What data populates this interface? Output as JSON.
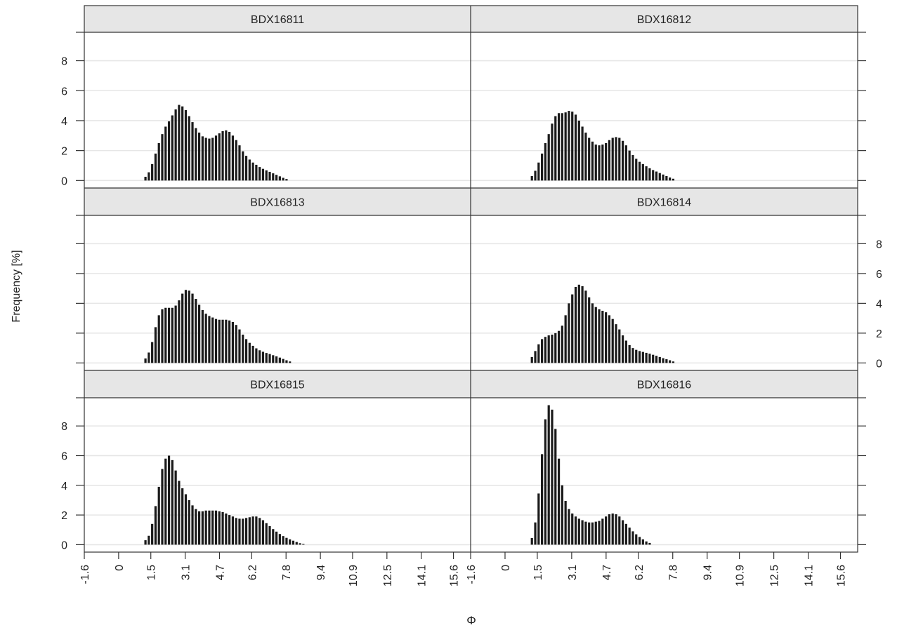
{
  "chart_data": {
    "type": "bar",
    "layout": "lattice 2 columns x 3 rows",
    "xlabel": "Φ",
    "ylabel": "Frequency [%]",
    "x_ticks": [
      "-1.6",
      "0",
      "1.5",
      "3.1",
      "4.7",
      "6.2",
      "7.8",
      "9.4",
      "10.9",
      "12.5",
      "14.1",
      "15.6"
    ],
    "y_ticks": [
      0,
      2,
      4,
      6,
      8
    ],
    "xlim": [
      -1.6,
      16.4
    ],
    "ylim": [
      -0.5,
      9.9
    ],
    "grid": true,
    "colors": {
      "bar": "#1a1a1a",
      "strip": "#e6e6e6",
      "grid": "#e6e6e6",
      "frame": "#333333"
    },
    "x_start": 1.25,
    "x_step": 0.1565,
    "panels": [
      {
        "name": "BDX16811",
        "values": [
          0.25,
          0.55,
          1.1,
          1.8,
          2.5,
          3.1,
          3.6,
          3.95,
          4.35,
          4.75,
          5.05,
          4.95,
          4.7,
          4.3,
          3.9,
          3.5,
          3.2,
          2.95,
          2.85,
          2.8,
          2.85,
          3.0,
          3.15,
          3.3,
          3.35,
          3.25,
          3.0,
          2.7,
          2.35,
          1.95,
          1.65,
          1.4,
          1.2,
          1.05,
          0.9,
          0.78,
          0.68,
          0.58,
          0.48,
          0.38,
          0.28,
          0.18,
          0.1
        ]
      },
      {
        "name": "BDX16812",
        "values": [
          0.3,
          0.65,
          1.2,
          1.8,
          2.5,
          3.1,
          3.8,
          4.3,
          4.5,
          4.5,
          4.55,
          4.65,
          4.6,
          4.4,
          4.0,
          3.6,
          3.2,
          2.85,
          2.6,
          2.4,
          2.35,
          2.4,
          2.5,
          2.7,
          2.85,
          2.9,
          2.85,
          2.65,
          2.35,
          2.0,
          1.7,
          1.45,
          1.25,
          1.1,
          0.95,
          0.82,
          0.7,
          0.6,
          0.5,
          0.4,
          0.3,
          0.2,
          0.12
        ]
      },
      {
        "name": "BDX16813",
        "values": [
          0.3,
          0.7,
          1.4,
          2.4,
          3.2,
          3.6,
          3.7,
          3.7,
          3.7,
          3.85,
          4.2,
          4.65,
          4.9,
          4.85,
          4.65,
          4.3,
          3.9,
          3.55,
          3.3,
          3.15,
          3.05,
          2.95,
          2.9,
          2.9,
          2.9,
          2.85,
          2.75,
          2.55,
          2.25,
          1.9,
          1.6,
          1.35,
          1.15,
          0.98,
          0.85,
          0.75,
          0.67,
          0.6,
          0.52,
          0.44,
          0.36,
          0.27,
          0.18,
          0.1
        ]
      },
      {
        "name": "BDX16814",
        "values": [
          0.4,
          0.8,
          1.25,
          1.6,
          1.75,
          1.85,
          1.9,
          2.0,
          2.15,
          2.5,
          3.2,
          4.0,
          4.6,
          5.1,
          5.25,
          5.15,
          4.85,
          4.4,
          4.0,
          3.75,
          3.6,
          3.5,
          3.4,
          3.2,
          2.95,
          2.6,
          2.25,
          1.85,
          1.5,
          1.2,
          1.0,
          0.88,
          0.8,
          0.74,
          0.68,
          0.62,
          0.55,
          0.48,
          0.4,
          0.32,
          0.25,
          0.18,
          0.1
        ]
      },
      {
        "name": "BDX16815",
        "values": [
          0.3,
          0.6,
          1.4,
          2.6,
          3.9,
          5.1,
          5.8,
          6.0,
          5.7,
          5.0,
          4.3,
          3.8,
          3.4,
          3.0,
          2.65,
          2.4,
          2.25,
          2.25,
          2.3,
          2.3,
          2.3,
          2.3,
          2.25,
          2.2,
          2.1,
          2.0,
          1.9,
          1.8,
          1.75,
          1.75,
          1.8,
          1.85,
          1.9,
          1.9,
          1.8,
          1.65,
          1.45,
          1.25,
          1.05,
          0.88,
          0.72,
          0.58,
          0.46,
          0.36,
          0.27,
          0.18,
          0.1,
          0.05
        ]
      },
      {
        "name": "BDX16816",
        "values": [
          0.45,
          1.5,
          3.45,
          6.1,
          8.45,
          9.4,
          9.1,
          7.8,
          5.8,
          4.0,
          2.95,
          2.4,
          2.1,
          1.9,
          1.75,
          1.65,
          1.55,
          1.5,
          1.5,
          1.55,
          1.6,
          1.75,
          1.9,
          2.05,
          2.1,
          2.05,
          1.9,
          1.65,
          1.4,
          1.15,
          0.9,
          0.7,
          0.52,
          0.36,
          0.22,
          0.12
        ]
      }
    ]
  }
}
